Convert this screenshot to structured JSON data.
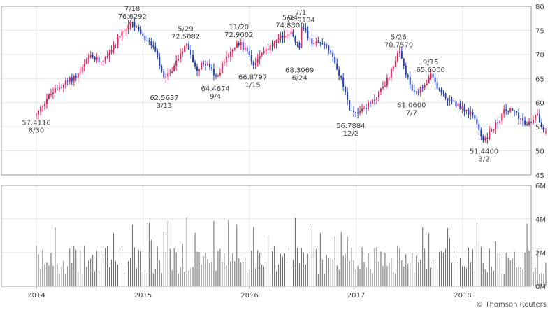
{
  "chart_data": {
    "type": "candlestick",
    "credit": "© Thomson Reuters",
    "x_tick_labels": [
      "2014",
      "2015",
      "2016",
      "2017",
      "2018"
    ],
    "price_axis": {
      "ylim": [
        45,
        80
      ],
      "ticks": [
        45,
        50,
        55,
        60,
        65,
        70,
        75,
        80
      ]
    },
    "volume_axis": {
      "ylim": [
        0,
        6000000
      ],
      "ticks": [
        0,
        2000000,
        4000000,
        6000000
      ],
      "tick_labels": [
        "0M",
        "2M",
        "4M",
        "6M"
      ]
    },
    "up_color": "#e0245e",
    "down_color": "#1f3fbf",
    "grid": true,
    "annotations": [
      {
        "date": "8/30",
        "value": "57.4116",
        "t": 0.0,
        "placement": "below"
      },
      {
        "date": "7/18",
        "value": "76.6292",
        "t": 0.9,
        "placement": "above"
      },
      {
        "date": "3/13",
        "value": "62.5637",
        "t": 1.2,
        "placement": "below"
      },
      {
        "date": "5/29",
        "value": "72.5082",
        "t": 1.4,
        "placement": "above"
      },
      {
        "date": "9/4",
        "value": "64.4674",
        "t": 1.68,
        "placement": "below"
      },
      {
        "date": "11/20",
        "value": "72.9002",
        "t": 1.9,
        "placement": "above"
      },
      {
        "date": "1/15",
        "value": "66.8797",
        "t": 2.03,
        "placement": "below"
      },
      {
        "date": "5/24",
        "value": "74.8300",
        "t": 2.38,
        "placement": "above"
      },
      {
        "date": "7/1",
        "value": "75.9104",
        "t": 2.48,
        "placement": "above"
      },
      {
        "date": "6/24",
        "value": "68.3069",
        "t": 2.47,
        "placement": "below"
      },
      {
        "date": "12/2",
        "value": "56.7884",
        "t": 2.95,
        "placement": "below"
      },
      {
        "date": "5/26",
        "value": "70.7579",
        "t": 3.4,
        "placement": "above"
      },
      {
        "date": "7/7",
        "value": "61.0600",
        "t": 3.52,
        "placement": "below"
      },
      {
        "date": "9/15",
        "value": "65.6000",
        "t": 3.7,
        "placement": "above"
      },
      {
        "date": "3/2",
        "value": "51.4400",
        "t": 4.2,
        "placement": "below"
      }
    ],
    "price_path": [
      [
        0.0,
        57.4
      ],
      [
        0.1,
        61
      ],
      [
        0.2,
        63
      ],
      [
        0.3,
        64.5
      ],
      [
        0.4,
        66
      ],
      [
        0.5,
        69.5
      ],
      [
        0.6,
        68.5
      ],
      [
        0.7,
        71
      ],
      [
        0.8,
        74.5
      ],
      [
        0.9,
        76.6
      ],
      [
        1.0,
        73.5
      ],
      [
        1.1,
        71.5
      ],
      [
        1.2,
        64.5
      ],
      [
        1.3,
        68
      ],
      [
        1.4,
        72.4
      ],
      [
        1.5,
        67
      ],
      [
        1.6,
        68.5
      ],
      [
        1.68,
        65
      ],
      [
        1.8,
        70
      ],
      [
        1.9,
        72.5
      ],
      [
        2.0,
        70
      ],
      [
        2.03,
        67
      ],
      [
        2.1,
        70.5
      ],
      [
        2.2,
        71.5
      ],
      [
        2.3,
        73.5
      ],
      [
        2.38,
        74.8
      ],
      [
        2.47,
        71
      ],
      [
        2.48,
        75.9
      ],
      [
        2.6,
        72
      ],
      [
        2.7,
        72.5
      ],
      [
        2.78,
        70
      ],
      [
        2.85,
        65.5
      ],
      [
        2.95,
        58
      ],
      [
        3.05,
        58.5
      ],
      [
        3.15,
        60
      ],
      [
        3.3,
        65
      ],
      [
        3.4,
        70.7
      ],
      [
        3.5,
        64
      ],
      [
        3.55,
        61.5
      ],
      [
        3.65,
        63.5
      ],
      [
        3.7,
        65.6
      ],
      [
        3.8,
        62
      ],
      [
        3.9,
        60
      ],
      [
        4.0,
        59
      ],
      [
        4.1,
        57
      ],
      [
        4.2,
        52
      ],
      [
        4.3,
        55
      ],
      [
        4.4,
        58.5
      ],
      [
        4.5,
        58
      ],
      [
        4.6,
        55
      ],
      [
        4.7,
        57.5
      ],
      [
        4.78,
        53.5
      ]
    ],
    "candles": [],
    "volumes": []
  }
}
